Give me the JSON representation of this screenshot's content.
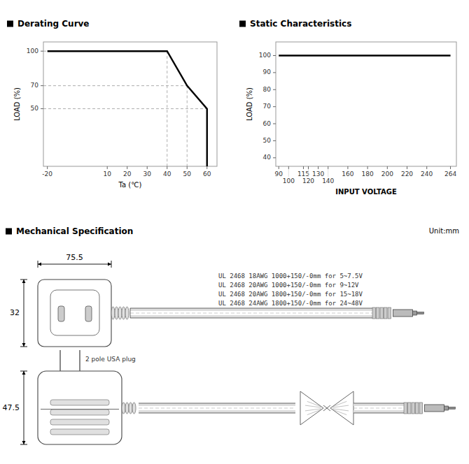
{
  "chart_data": [
    {
      "type": "line",
      "title": "Derating Curve",
      "x": [
        -20,
        40,
        50,
        60,
        60
      ],
      "values": [
        100,
        100,
        70,
        50,
        0
      ],
      "xlabel": "Ta (℃)",
      "ylabel": "LOAD (%)",
      "xlim": [
        -22,
        65
      ],
      "ylim": [
        0,
        108
      ],
      "xticks": [
        -20,
        10,
        20,
        30,
        40,
        50,
        60
      ],
      "yticks": [
        50,
        70,
        100
      ],
      "color": "#000000",
      "grid": false
    },
    {
      "type": "line",
      "title": "Static Characteristics",
      "x": [
        90,
        264
      ],
      "values": [
        100,
        100
      ],
      "xlabel": "INPUT VOLTAGE",
      "ylabel": "LOAD (%)",
      "xlim": [
        87,
        270
      ],
      "ylim": [
        35,
        108
      ],
      "xticks": [
        90,
        100,
        115,
        120,
        130,
        140,
        160,
        180,
        200,
        220,
        240,
        264
      ],
      "yticks": [
        40,
        50,
        60,
        70,
        80,
        90,
        100
      ],
      "color": "#000000",
      "grid": false
    },
    {
      "type": "drawing",
      "title": "Mechanical Specification",
      "subtitle": "Unit:mm",
      "annotations": [
        "75.5",
        "32",
        "47.5",
        "2 pole USA plug",
        "UL 2468 18AWG 1000+150/-0mm for 5~7.5V",
        "UL 2468 20AWG 1000+150/-0mm for 9~12V",
        "UL 2468 20AWG 1800+150/-0mm for 15~18V",
        "UL 2468 24AWG 1800+150/-0mm for 24~48V"
      ]
    }
  ]
}
